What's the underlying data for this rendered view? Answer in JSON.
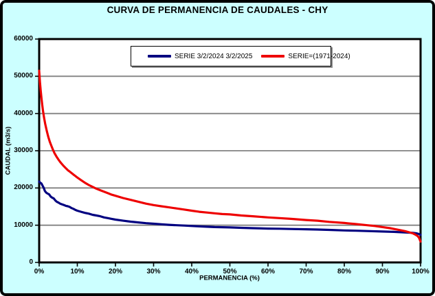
{
  "title": "CURVA DE PERMANENCIA DE CAUDALES - CHY",
  "colors": {
    "background": "#CCFFFF",
    "plot_background": "#FFFFFF",
    "grid": "#808080",
    "axis": "#000000",
    "series_blue": "#000080",
    "series_red": "#EE0000"
  },
  "legend": {
    "items": [
      {
        "label": "SERIE 3/2/2024 3/2/2025",
        "color": "#000080"
      },
      {
        "label": "SERIE=(1971-2024)",
        "color": "#EE0000"
      }
    ]
  },
  "chart_data": {
    "type": "line",
    "title": "CURVA DE PERMANENCIA DE CAUDALES - CHY",
    "xlabel": "PERMANENCIA (%)",
    "ylabel": "CAUDAL (m3/s)",
    "xlim": [
      0,
      100
    ],
    "ylim": [
      0,
      60000
    ],
    "xticks": [
      0,
      10,
      20,
      30,
      40,
      50,
      60,
      70,
      80,
      90,
      100
    ],
    "xtick_labels": [
      "0%",
      "10%",
      "20%",
      "30%",
      "40%",
      "50%",
      "60%",
      "70%",
      "80%",
      "90%",
      "100%"
    ],
    "yticks": [
      0,
      10000,
      20000,
      30000,
      40000,
      50000,
      60000
    ],
    "ytick_labels": [
      "0",
      "10000",
      "20000",
      "30000",
      "40000",
      "50000",
      "60000"
    ],
    "grid": "horizontal",
    "legend_position": "top-center",
    "series": [
      {
        "name": "SERIE 3/2/2024 3/2/2025",
        "color": "#000080",
        "points": [
          [
            0,
            21700
          ],
          [
            0.3,
            21400
          ],
          [
            0.6,
            21200
          ],
          [
            0.9,
            20600
          ],
          [
            1.2,
            20000
          ],
          [
            1.5,
            19200
          ],
          [
            1.8,
            18800
          ],
          [
            2.2,
            18500
          ],
          [
            2.6,
            18300
          ],
          [
            3,
            17700
          ],
          [
            3.4,
            17400
          ],
          [
            3.8,
            17200
          ],
          [
            4.2,
            16700
          ],
          [
            4.6,
            16300
          ],
          [
            5,
            16100
          ],
          [
            5.5,
            15800
          ],
          [
            6,
            15600
          ],
          [
            6.5,
            15400
          ],
          [
            7,
            15200
          ],
          [
            7.5,
            15100
          ],
          [
            8,
            14900
          ],
          [
            8.5,
            14600
          ],
          [
            9,
            14400
          ],
          [
            9.5,
            14100
          ],
          [
            10,
            13900
          ],
          [
            11,
            13600
          ],
          [
            12,
            13300
          ],
          [
            13,
            13100
          ],
          [
            14,
            12800
          ],
          [
            15,
            12600
          ],
          [
            16,
            12400
          ],
          [
            17,
            12100
          ],
          [
            18,
            11900
          ],
          [
            19,
            11700
          ],
          [
            20,
            11500
          ],
          [
            22,
            11200
          ],
          [
            24,
            10950
          ],
          [
            26,
            10750
          ],
          [
            28,
            10550
          ],
          [
            30,
            10400
          ],
          [
            32,
            10250
          ],
          [
            34,
            10100
          ],
          [
            36,
            10000
          ],
          [
            38,
            9900
          ],
          [
            40,
            9800
          ],
          [
            43,
            9650
          ],
          [
            46,
            9500
          ],
          [
            50,
            9400
          ],
          [
            53,
            9300
          ],
          [
            56,
            9200
          ],
          [
            60,
            9100
          ],
          [
            63,
            9050
          ],
          [
            66,
            8980
          ],
          [
            70,
            8900
          ],
          [
            73,
            8830
          ],
          [
            76,
            8750
          ],
          [
            80,
            8600
          ],
          [
            83,
            8520
          ],
          [
            86,
            8430
          ],
          [
            90,
            8300
          ],
          [
            93,
            8200
          ],
          [
            96,
            8050
          ],
          [
            98,
            7950
          ],
          [
            99,
            7800
          ],
          [
            99.5,
            7650
          ],
          [
            100,
            7400
          ]
        ]
      },
      {
        "name": "SERIE=(1971-2024)",
        "color": "#EE0000",
        "points": [
          [
            0,
            51500
          ],
          [
            0.2,
            48500
          ],
          [
            0.4,
            46200
          ],
          [
            0.6,
            44200
          ],
          [
            0.8,
            42400
          ],
          [
            1,
            40800
          ],
          [
            1.3,
            38800
          ],
          [
            1.6,
            37100
          ],
          [
            2,
            35300
          ],
          [
            2.4,
            33700
          ],
          [
            2.8,
            32400
          ],
          [
            3.2,
            31300
          ],
          [
            3.6,
            30300
          ],
          [
            4,
            29400
          ],
          [
            4.5,
            28500
          ],
          [
            5,
            27700
          ],
          [
            5.5,
            27000
          ],
          [
            6,
            26400
          ],
          [
            6.5,
            25800
          ],
          [
            7,
            25300
          ],
          [
            7.5,
            24800
          ],
          [
            8,
            24400
          ],
          [
            8.5,
            24000
          ],
          [
            9,
            23600
          ],
          [
            9.5,
            23200
          ],
          [
            10,
            22800
          ],
          [
            11,
            22100
          ],
          [
            12,
            21400
          ],
          [
            13,
            20800
          ],
          [
            14,
            20300
          ],
          [
            15,
            19800
          ],
          [
            16,
            19400
          ],
          [
            17,
            19000
          ],
          [
            18,
            18600
          ],
          [
            19,
            18200
          ],
          [
            20,
            17900
          ],
          [
            22,
            17300
          ],
          [
            24,
            16800
          ],
          [
            26,
            16300
          ],
          [
            28,
            15800
          ],
          [
            30,
            15400
          ],
          [
            32,
            15100
          ],
          [
            34,
            14800
          ],
          [
            36,
            14500
          ],
          [
            38,
            14200
          ],
          [
            40,
            13900
          ],
          [
            42,
            13600
          ],
          [
            44,
            13400
          ],
          [
            46,
            13200
          ],
          [
            48,
            13000
          ],
          [
            50,
            12900
          ],
          [
            53,
            12600
          ],
          [
            56,
            12400
          ],
          [
            60,
            12100
          ],
          [
            63,
            11900
          ],
          [
            66,
            11700
          ],
          [
            70,
            11400
          ],
          [
            73,
            11200
          ],
          [
            76,
            10900
          ],
          [
            80,
            10600
          ],
          [
            83,
            10300
          ],
          [
            86,
            10000
          ],
          [
            88,
            9800
          ],
          [
            90,
            9500
          ],
          [
            92,
            9200
          ],
          [
            94,
            8800
          ],
          [
            95,
            8600
          ],
          [
            96,
            8400
          ],
          [
            97,
            8100
          ],
          [
            98,
            7800
          ],
          [
            98.6,
            7500
          ],
          [
            99.2,
            7100
          ],
          [
            99.6,
            6600
          ],
          [
            99.8,
            6100
          ],
          [
            100,
            5600
          ]
        ]
      }
    ]
  }
}
